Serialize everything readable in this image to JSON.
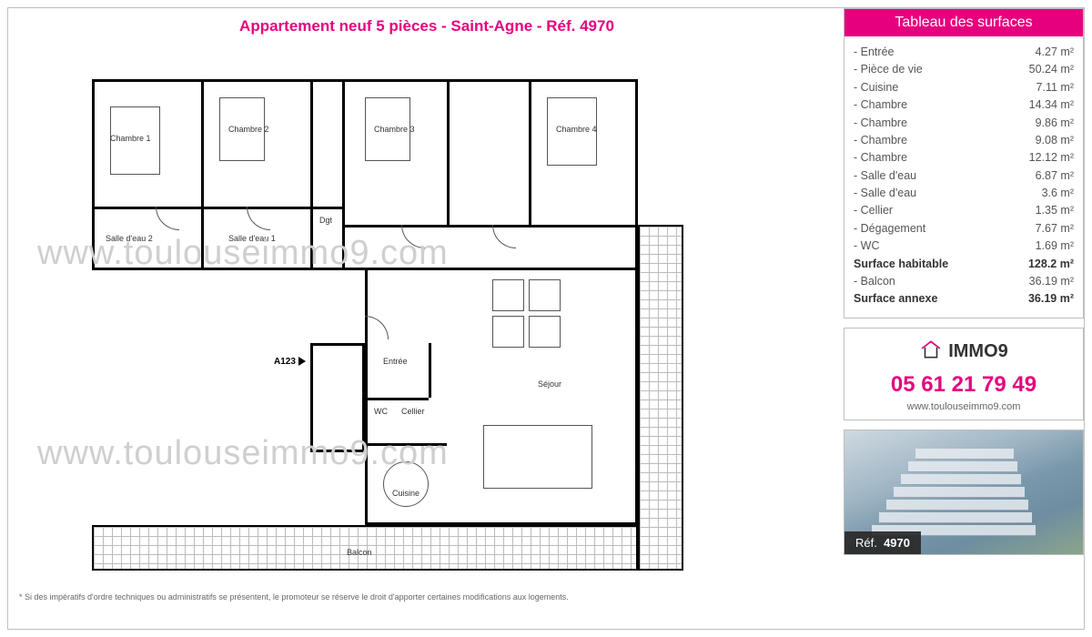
{
  "title": "Appartement neuf 5 pièces - Saint-Agne - Réf. 4970",
  "watermark": "www.toulouseimmo9.com",
  "footnote": "* Si des impératifs d'ordre techniques ou administratifs se présentent, le promoteur se réserve le droit d'apporter certaines modifications aux logements.",
  "floorplan": {
    "entry_label": "A123",
    "rooms": {
      "chambre1": "Chambre 1",
      "chambre2": "Chambre 2",
      "chambre3": "Chambre 3",
      "chambre4": "Chambre 4",
      "sde1": "Salle d'eau 1",
      "sde2": "Salle d'eau 2",
      "dgt": "Dgt",
      "entree": "Entrée",
      "wc": "WC",
      "cellier": "Cellier",
      "cuisine": "Cuisine",
      "sejour": "Séjour",
      "balcon": "Balcon"
    }
  },
  "surfaces": {
    "header": "Tableau des surfaces",
    "rows": [
      {
        "label": "Entrée",
        "value": "4.27 m²",
        "bold": false
      },
      {
        "label": "Pièce de vie",
        "value": "50.24 m²",
        "bold": false
      },
      {
        "label": "Cuisine",
        "value": "7.11 m²",
        "bold": false
      },
      {
        "label": "Chambre",
        "value": "14.34 m²",
        "bold": false
      },
      {
        "label": "Chambre",
        "value": "9.86 m²",
        "bold": false
      },
      {
        "label": "Chambre",
        "value": "9.08 m²",
        "bold": false
      },
      {
        "label": "Chambre",
        "value": "12.12 m²",
        "bold": false
      },
      {
        "label": "Salle d'eau",
        "value": "6.87 m²",
        "bold": false
      },
      {
        "label": "Salle d'eau",
        "value": "3.6 m²",
        "bold": false
      },
      {
        "label": "Cellier",
        "value": "1.35 m²",
        "bold": false
      },
      {
        "label": "Dégagement",
        "value": "7.67 m²",
        "bold": false
      },
      {
        "label": "WC",
        "value": "1.69 m²",
        "bold": false
      },
      {
        "label": "Surface habitable",
        "value": "128.2 m²",
        "bold": true
      },
      {
        "label": "Balcon",
        "value": "36.19 m²",
        "bold": false
      },
      {
        "label": "Surface annexe",
        "value": "36.19 m²",
        "bold": true
      }
    ]
  },
  "contact": {
    "logo_text": "IMMO9",
    "phone": "05 61 21 79 49",
    "website": "www.toulouseimmo9.com"
  },
  "ref_badge": {
    "prefix": "Réf.",
    "number": "4970"
  },
  "colors": {
    "accent": "#e6007e",
    "border": "#bfbfbf",
    "text": "#555555",
    "watermark": "#cfcfcf"
  }
}
